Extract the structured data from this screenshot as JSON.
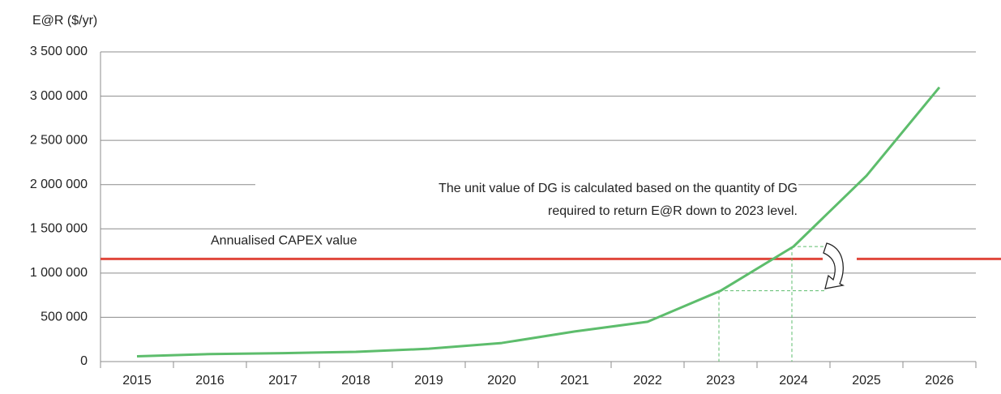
{
  "chart_data": {
    "type": "line",
    "y_axis_label": "E@R ($/yr)",
    "categories": [
      "2015",
      "2016",
      "2017",
      "2018",
      "2019",
      "2020",
      "2021",
      "2022",
      "2023",
      "2024",
      "2025",
      "2026"
    ],
    "series": [
      {
        "name": "E@R",
        "color": "#5dbd6c",
        "values": [
          60000,
          85000,
          95000,
          110000,
          145000,
          210000,
          340000,
          450000,
          800000,
          1300000,
          2100000,
          3100000
        ]
      }
    ],
    "ylim": [
      0,
      3500000
    ],
    "yticks": [
      0,
      {
        "value": 500000,
        "label": "500 000"
      },
      {
        "value": 1000000,
        "label": "1 000 000"
      },
      {
        "value": 1500000,
        "label": "1 500 000"
      },
      {
        "value": 2000000,
        "label": "2 000 000"
      },
      {
        "value": 2500000,
        "label": "2 500 000"
      },
      {
        "value": 3000000,
        "label": "3 000 000"
      },
      {
        "value": 3500000,
        "label": "3 500 000"
      }
    ],
    "grid": true,
    "reference_line": {
      "value": 1160000,
      "label": "Annualised CAPEX value",
      "color": "#e0473c"
    },
    "annotation": [
      "The unit value of DG is calculated based on the quantity of DG",
      "required to return E@R down to 2023 level."
    ]
  }
}
